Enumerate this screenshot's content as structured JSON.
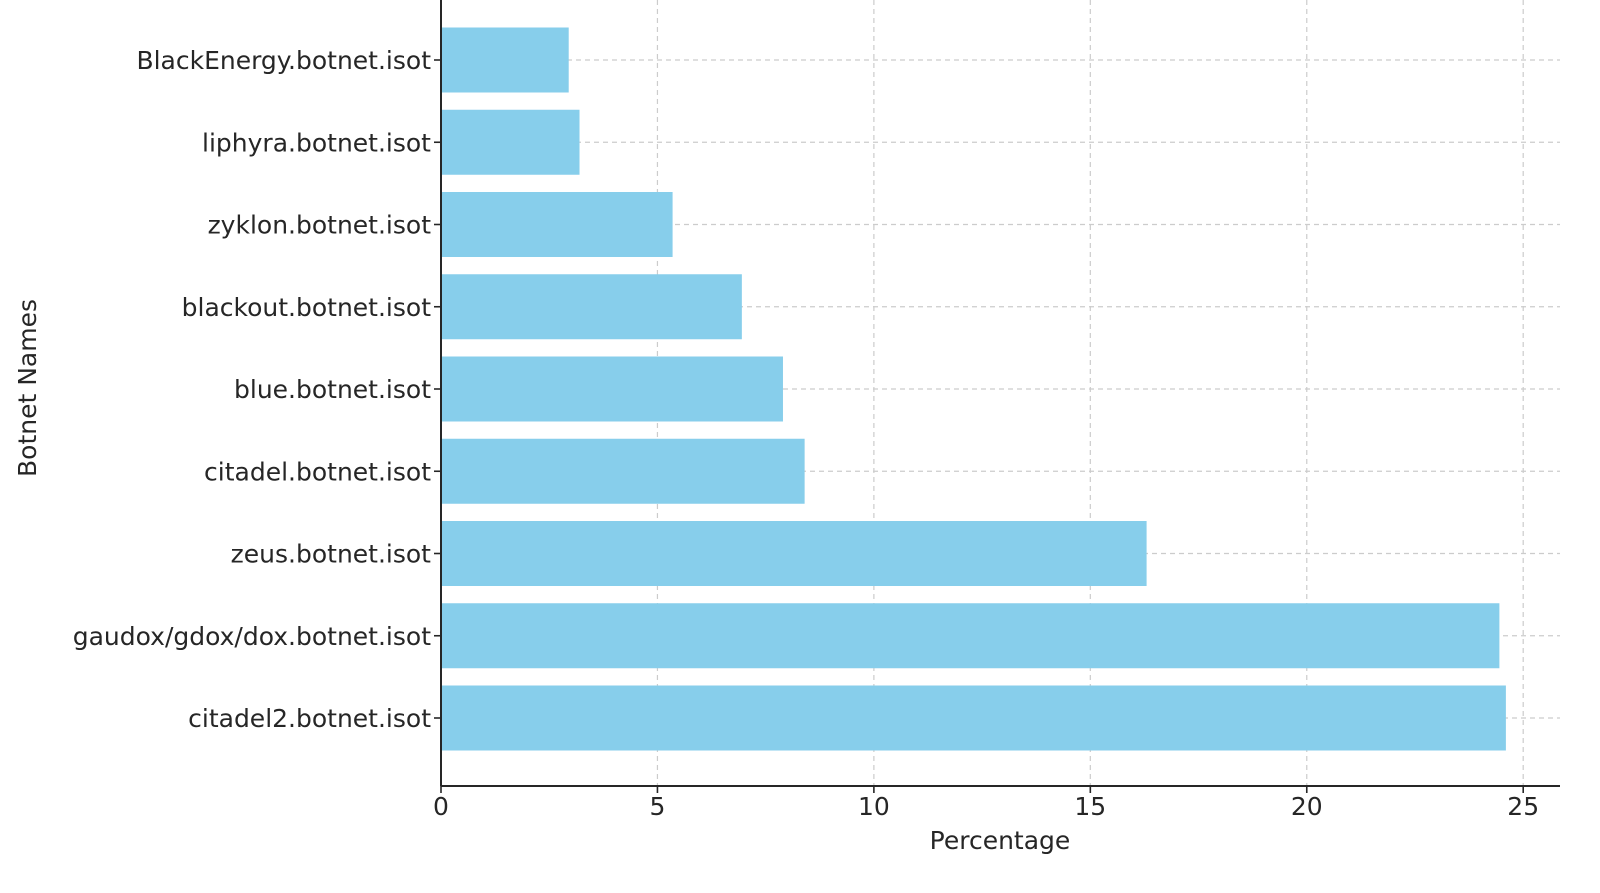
{
  "chart_data": {
    "type": "bar",
    "orientation": "horizontal",
    "title": "",
    "xlabel": "Percentage",
    "ylabel": "Botnet Names",
    "categories": [
      "citadel2.botnet.isot",
      "gaudox/gdox/dox.botnet.isot",
      "zeus.botnet.isot",
      "citadel.botnet.isot",
      "blue.botnet.isot",
      "blackout.botnet.isot",
      "zyklon.botnet.isot",
      "liphyra.botnet.isot",
      "BlackEnergy.botnet.isot"
    ],
    "values": [
      24.6,
      24.45,
      16.3,
      8.4,
      7.9,
      6.95,
      5.35,
      3.2,
      2.95
    ],
    "xlim": [
      0,
      25.85
    ],
    "xticks": [
      0,
      5,
      10,
      15,
      20,
      25
    ],
    "grid": true,
    "bar_color": "#87CEEB"
  }
}
